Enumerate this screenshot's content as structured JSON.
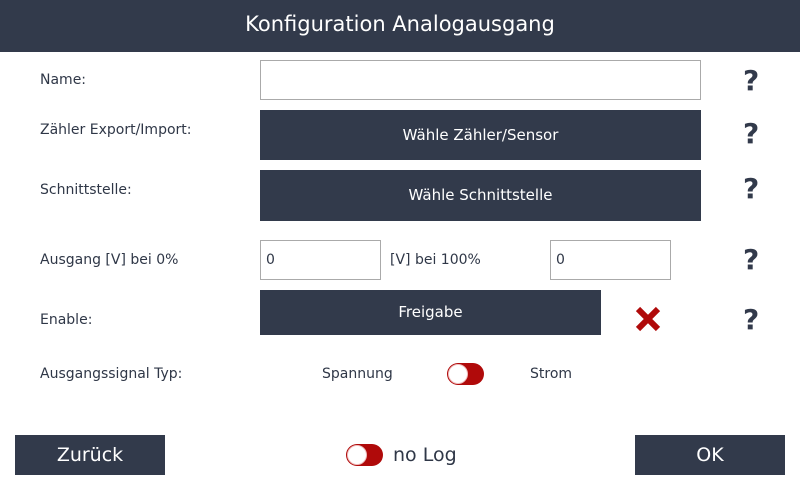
{
  "title": "Konfiguration Analogausgang",
  "fields": {
    "name_label": "Name:",
    "name_value": "",
    "counter_label": "Zähler Export/Import:",
    "counter_button": "Wähle Zähler/Sensor",
    "interface_label": "Schnittstelle:",
    "interface_button": "Wähle Schnittstelle",
    "output_label": "Ausgang [V] bei 0%",
    "output_0_value": "0",
    "output_100_label": "[V] bei 100%",
    "output_100_value": "0",
    "enable_label": "Enable:",
    "enable_button": "Freigabe",
    "signal_label": "Ausgangssignal Typ:",
    "signal_left": "Spannung",
    "signal_right": "Strom"
  },
  "help": "?",
  "footer": {
    "back": "Zurück",
    "log_label": "no Log",
    "ok": "OK"
  },
  "colors": {
    "primary": "#323a4b",
    "accent": "#b00a0a"
  }
}
